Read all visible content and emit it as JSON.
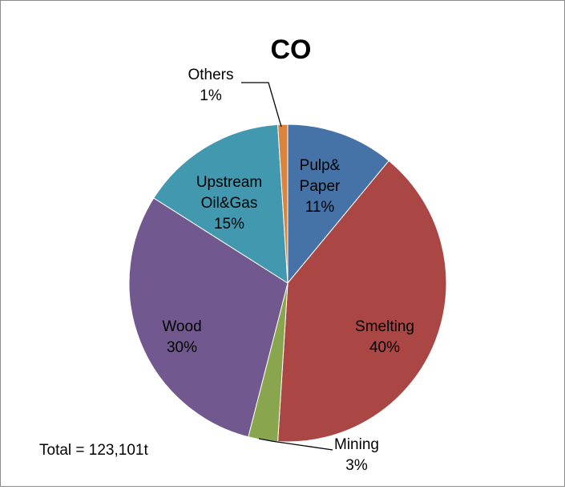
{
  "chart_data": {
    "type": "pie",
    "title": "CO",
    "slices": [
      {
        "name": "Pulp&\nPaper",
        "percent_label": "11%",
        "value": 11,
        "color": "#4572A7"
      },
      {
        "name": "Smelting",
        "percent_label": "40%",
        "value": 40,
        "color": "#AA4643"
      },
      {
        "name": "Mining",
        "percent_label": "3%",
        "value": 3,
        "color": "#89A54E"
      },
      {
        "name": "Wood",
        "percent_label": "30%",
        "value": 30,
        "color": "#71588F"
      },
      {
        "name": "Upstream\nOil&Gas",
        "percent_label": "15%",
        "value": 15,
        "color": "#4198AF"
      },
      {
        "name": "Others",
        "percent_label": "1%",
        "value": 1,
        "color": "#DB843D"
      }
    ],
    "annotation": "Total = 123,101t"
  }
}
